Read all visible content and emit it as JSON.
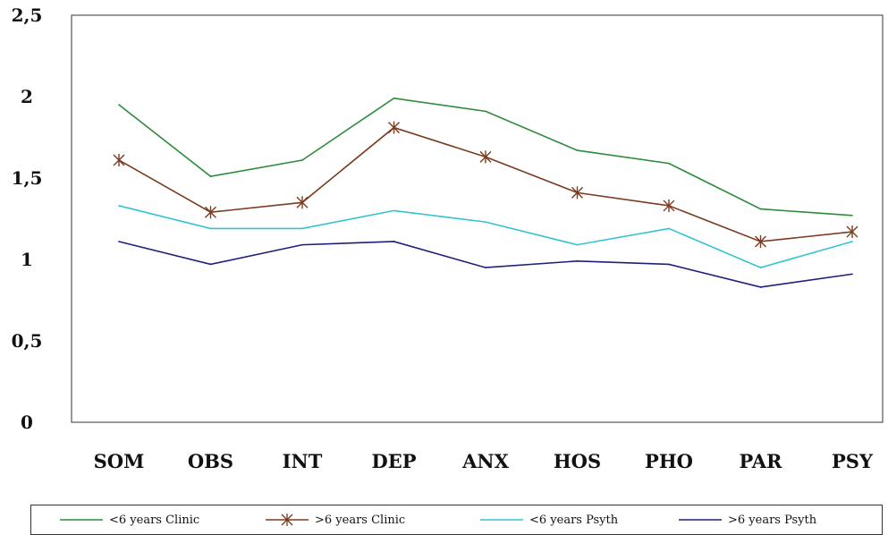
{
  "chart_data": {
    "type": "line",
    "categories": [
      "SOM",
      "OBS",
      "INT",
      "DEP",
      "ANX",
      "HOS",
      "PHO",
      "PAR",
      "PSY"
    ],
    "ylim": [
      0,
      2.5
    ],
    "yticks": [
      "0",
      "0,5",
      "1",
      "1,5",
      "2",
      "2,5"
    ],
    "grid": false,
    "legend_position": "bottom",
    "series": [
      {
        "name": "<6 years Clinic",
        "color": "#2e8b3a",
        "marker": "none",
        "values": [
          1.95,
          1.51,
          1.61,
          1.99,
          1.91,
          1.67,
          1.59,
          1.31,
          1.27
        ]
      },
      {
        "name": ">6 years Clinic",
        "color": "#7a3b1e",
        "marker": "asterisk",
        "values": [
          1.61,
          1.29,
          1.35,
          1.81,
          1.63,
          1.41,
          1.33,
          1.11,
          1.17
        ]
      },
      {
        "name": "<6 years Psyth",
        "color": "#33c3d1",
        "marker": "none",
        "values": [
          1.33,
          1.19,
          1.19,
          1.3,
          1.23,
          1.09,
          1.19,
          0.95,
          1.11
        ]
      },
      {
        "name": ">6 years Psyth",
        "color": "#1f1f7a",
        "marker": "none",
        "values": [
          1.11,
          0.97,
          1.09,
          1.11,
          0.95,
          0.99,
          0.97,
          0.83,
          0.91
        ]
      }
    ]
  }
}
